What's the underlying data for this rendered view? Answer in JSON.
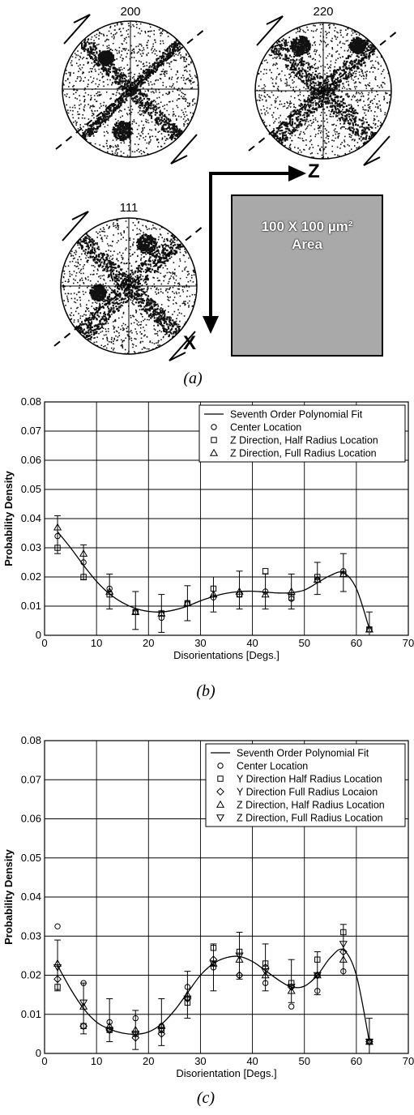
{
  "figure_a": {
    "pole_figures": [
      {
        "label": "200"
      },
      {
        "label": "220"
      },
      {
        "label": "111"
      }
    ],
    "axis_z": "Z",
    "axis_x": "X",
    "area_line1": "100 X 100 µm²",
    "area_line2": "Area",
    "caption": "(a)"
  },
  "chart_data": [
    {
      "type": "scatter",
      "caption": "(b)",
      "xlabel": "Disorientations [Degs.]",
      "ylabel": "Probability Density",
      "xlim": [
        0,
        70
      ],
      "ylim": [
        0,
        0.08
      ],
      "xticks": [
        "0",
        "10",
        "20",
        "30",
        "40",
        "50",
        "60",
        "70"
      ],
      "yticks": [
        "0",
        "0.01",
        "0.02",
        "0.03",
        "0.04",
        "0.05",
        "0.06",
        "0.07",
        "0.08"
      ],
      "grid": true,
      "legend_position": "top-right",
      "fit": {
        "name": "Seventh Order Polynomial Fit",
        "x": [
          2.5,
          5,
          7.5,
          10,
          12.5,
          15,
          17.5,
          20,
          22.5,
          25,
          27.5,
          30,
          32.5,
          35,
          37.5,
          40,
          42.5,
          45,
          47.5,
          50,
          52.5,
          55,
          57.5,
          60,
          62.5
        ],
        "y": [
          0.0355,
          0.03,
          0.024,
          0.0185,
          0.0142,
          0.0112,
          0.0092,
          0.0082,
          0.008,
          0.0087,
          0.01,
          0.0118,
          0.0133,
          0.0144,
          0.015,
          0.0151,
          0.0148,
          0.0145,
          0.0146,
          0.0155,
          0.018,
          0.0205,
          0.0215,
          0.016,
          0.0022
        ]
      },
      "series": [
        {
          "name": "Center Location",
          "marker": "circle",
          "x": [
            2.5,
            7.5,
            12.5,
            17.5,
            22.5,
            27.5,
            32.5,
            37.5,
            42.5,
            47.5,
            52.5,
            57.5,
            62.5
          ],
          "y": [
            0.034,
            0.025,
            0.016,
            0.008,
            0.006,
            0.011,
            0.013,
            0.014,
            0.015,
            0.0125,
            0.019,
            0.022,
            0.002
          ]
        },
        {
          "name": "Z Direction, Half Radius Location",
          "marker": "square",
          "x": [
            2.5,
            7.5,
            12.5,
            17.5,
            22.5,
            27.5,
            32.5,
            37.5,
            42.5,
            47.5,
            52.5,
            57.5,
            62.5
          ],
          "y": [
            0.03,
            0.02,
            0.014,
            0.008,
            0.0075,
            0.011,
            0.016,
            0.014,
            0.022,
            0.013,
            0.02,
            0.021,
            0.002
          ]
        },
        {
          "name": "Z Direction, Full Radius Location",
          "marker": "triangle-up",
          "x": [
            2.5,
            7.5,
            12.5,
            17.5,
            22.5,
            27.5,
            32.5,
            37.5,
            42.5,
            47.5,
            52.5,
            57.5,
            62.5
          ],
          "y": [
            0.037,
            0.028,
            0.015,
            0.008,
            0.0075,
            0.011,
            0.014,
            0.015,
            0.014,
            0.015,
            0.019,
            0.021,
            0.002
          ]
        }
      ],
      "error_bars": {
        "x": [
          2.5,
          7.5,
          12.5,
          17.5,
          22.5,
          27.5,
          32.5,
          37.5,
          42.5,
          47.5,
          52.5,
          57.5,
          62.5
        ],
        "low": [
          0.028,
          0.019,
          0.009,
          0.002,
          0.001,
          0.005,
          0.008,
          0.009,
          0.009,
          0.009,
          0.014,
          0.015,
          0.0
        ],
        "high": [
          0.041,
          0.031,
          0.021,
          0.015,
          0.014,
          0.017,
          0.02,
          0.022,
          0.021,
          0.021,
          0.025,
          0.028,
          0.008
        ]
      }
    },
    {
      "type": "scatter",
      "caption": "(c)",
      "xlabel": "Disorientation [Degs.]",
      "ylabel": "Probability Density",
      "xlim": [
        0,
        70
      ],
      "ylim": [
        0,
        0.08
      ],
      "xticks": [
        "0",
        "10",
        "20",
        "30",
        "40",
        "50",
        "60",
        "70"
      ],
      "yticks": [
        "0",
        "0.01",
        "0.02",
        "0.03",
        "0.04",
        "0.05",
        "0.06",
        "0.07",
        "0.08"
      ],
      "grid": true,
      "legend_position": "top-right",
      "fit": {
        "name": "Seventh Order Polynomial Fit",
        "x": [
          2.5,
          5,
          7.5,
          10,
          12.5,
          15,
          17.5,
          20,
          22.5,
          25,
          27.5,
          30,
          32.5,
          35,
          37.5,
          40,
          42.5,
          45,
          47.5,
          50,
          52.5,
          55,
          57.5,
          60,
          62.5
        ],
        "y": [
          0.0225,
          0.0165,
          0.0115,
          0.008,
          0.0062,
          0.0052,
          0.0049,
          0.0055,
          0.0075,
          0.011,
          0.0155,
          0.02,
          0.023,
          0.0245,
          0.0248,
          0.0235,
          0.0212,
          0.0188,
          0.017,
          0.0172,
          0.02,
          0.0245,
          0.0265,
          0.02,
          0.003
        ]
      },
      "series": [
        {
          "name": "Center Location",
          "marker": "circle",
          "x": [
            2.5,
            7.5,
            12.5,
            17.5,
            22.5,
            27.5,
            32.5,
            37.5,
            42.5,
            47.5,
            52.5,
            57.5,
            62.5
          ],
          "y": [
            0.0325,
            0.018,
            0.008,
            0.009,
            0.007,
            0.017,
            0.022,
            0.02,
            0.018,
            0.012,
            0.016,
            0.021,
            0.003
          ]
        },
        {
          "name": "Y Direction Half Radius Location",
          "marker": "square",
          "x": [
            2.5,
            7.5,
            12.5,
            17.5,
            22.5,
            27.5,
            32.5,
            37.5,
            42.5,
            47.5,
            52.5,
            57.5,
            62.5
          ],
          "y": [
            0.017,
            0.007,
            0.006,
            0.005,
            0.006,
            0.013,
            0.027,
            0.026,
            0.023,
            0.018,
            0.024,
            0.031,
            0.003
          ]
        },
        {
          "name": "Y Direction Full Radius Locaion",
          "marker": "diamond",
          "x": [
            2.5,
            7.5,
            12.5,
            17.5,
            22.5,
            27.5,
            32.5,
            37.5,
            42.5,
            47.5,
            52.5,
            57.5,
            62.5
          ],
          "y": [
            0.019,
            0.007,
            0.006,
            0.004,
            0.005,
            0.014,
            0.024,
            0.02,
            0.022,
            0.017,
            0.02,
            0.026,
            0.003
          ]
        },
        {
          "name": "Z Direction, Half Radius Location",
          "marker": "triangle-up",
          "x": [
            2.5,
            7.5,
            12.5,
            17.5,
            22.5,
            27.5,
            32.5,
            37.5,
            42.5,
            47.5,
            52.5,
            57.5,
            62.5
          ],
          "y": [
            0.023,
            0.012,
            0.007,
            0.006,
            0.007,
            0.015,
            0.023,
            0.024,
            0.02,
            0.016,
            0.02,
            0.024,
            0.003
          ]
        },
        {
          "name": "Z Direction, Full Radius Location",
          "marker": "triangle-down",
          "x": [
            2.5,
            7.5,
            12.5,
            17.5,
            22.5,
            27.5,
            32.5,
            37.5,
            42.5,
            47.5,
            52.5,
            57.5,
            62.5
          ],
          "y": [
            0.022,
            0.013,
            0.006,
            0.005,
            0.006,
            0.014,
            0.023,
            0.025,
            0.021,
            0.017,
            0.02,
            0.028,
            0.003
          ]
        }
      ],
      "error_bars": {
        "x": [
          2.5,
          7.5,
          12.5,
          17.5,
          22.5,
          27.5,
          32.5,
          37.5,
          42.5,
          47.5,
          52.5,
          57.5,
          62.5
        ],
        "low": [
          0.016,
          0.005,
          0.003,
          0.001,
          0.002,
          0.009,
          0.016,
          0.019,
          0.016,
          0.013,
          0.015,
          0.02,
          0.0
        ],
        "high": [
          0.029,
          0.018,
          0.014,
          0.011,
          0.014,
          0.021,
          0.028,
          0.031,
          0.028,
          0.024,
          0.026,
          0.033,
          0.009
        ]
      }
    }
  ]
}
